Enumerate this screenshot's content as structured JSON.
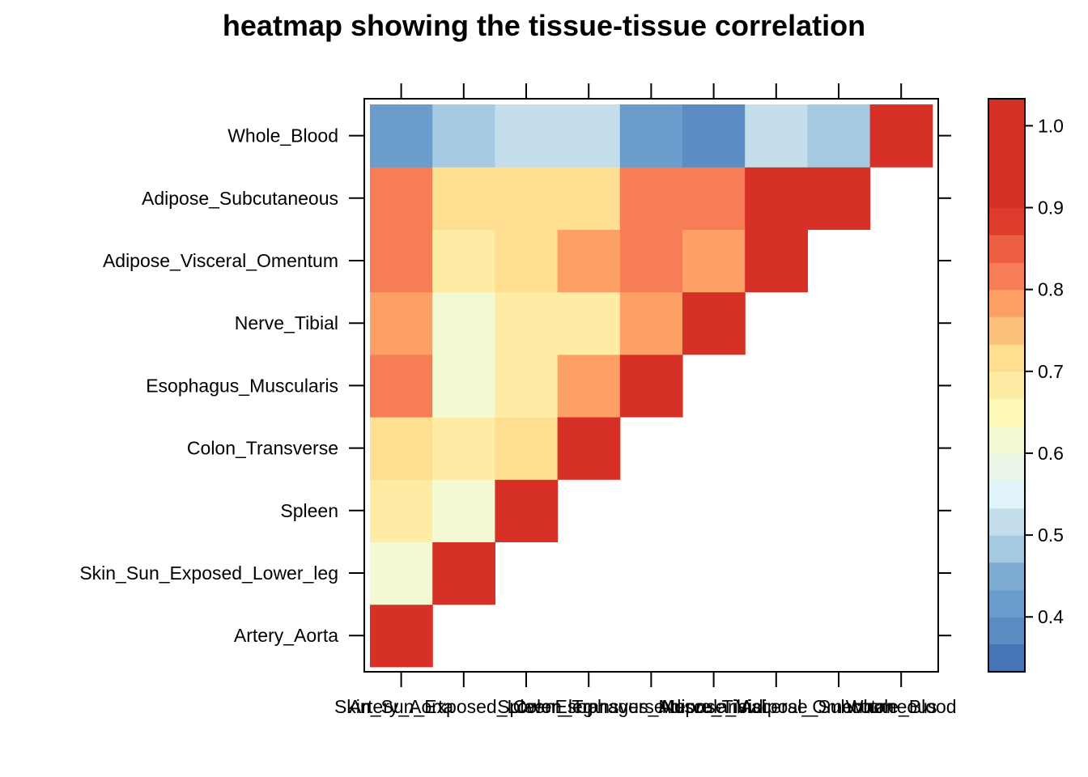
{
  "chart_data": {
    "type": "heatmap",
    "title": "heatmap showing the tissue-tissue correlation",
    "xlabel": "",
    "ylabel": "",
    "tissues": [
      "Artery_Aorta",
      "Skin_Sun_Exposed_Lower_leg",
      "Spleen",
      "Colon_Transverse",
      "Esophagus_Muscularis",
      "Nerve_Tibial",
      "Adipose_Visceral_Omentum",
      "Adipose_Subcutaneous",
      "Whole_Blood"
    ],
    "matrix_lower_triangle": [
      [
        1.0
      ],
      [
        0.63,
        1.0
      ],
      [
        0.67,
        0.63,
        1.0
      ],
      [
        0.73,
        0.67,
        0.73,
        1.0
      ],
      [
        0.83,
        0.63,
        0.67,
        0.77,
        1.0
      ],
      [
        0.77,
        0.63,
        0.67,
        0.67,
        0.77,
        1.0
      ],
      [
        0.8,
        0.67,
        0.73,
        0.77,
        0.8,
        0.77,
        1.0
      ],
      [
        0.8,
        0.73,
        0.73,
        0.73,
        0.8,
        0.8,
        0.97,
        1.0
      ],
      [
        0.43,
        0.47,
        0.53,
        0.5,
        0.43,
        0.37,
        0.5,
        0.47,
        1.0
      ]
    ],
    "colorbar": {
      "range": [
        0.333,
        1.033
      ],
      "breaks": [
        0.333,
        0.367,
        0.4,
        0.433,
        0.467,
        0.5,
        0.533,
        0.567,
        0.6,
        0.633,
        0.667,
        0.7,
        0.733,
        0.767,
        0.8,
        0.833,
        0.867,
        0.9,
        0.933,
        0.967,
        1.0,
        1.033
      ],
      "colors": [
        "#4575B4",
        "#5B8DC2",
        "#6A9DCB",
        "#7FADD2",
        "#A5CAE2",
        "#C5DEEC",
        "#E0F3F8",
        "#EAF4E7",
        "#F3FAD1",
        "#FEF8B9",
        "#FEECA4",
        "#FEDF91",
        "#FDC17E",
        "#FCA065",
        "#F77D56",
        "#EC5F42",
        "#DD3C2D",
        "#D73027",
        "#D73027",
        "#D73027",
        "#D73027"
      ],
      "tick_labels": [
        "0.4",
        "0.5",
        "0.6",
        "0.7",
        "0.8",
        "0.9",
        "1.0"
      ],
      "tick_values": [
        0.4,
        0.5,
        0.6,
        0.7,
        0.8,
        0.9,
        1.0
      ]
    },
    "legend_position": "right",
    "grid": false
  }
}
